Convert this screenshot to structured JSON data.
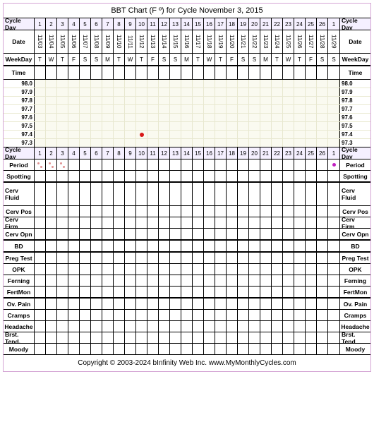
{
  "title": "BBT Chart (F º) for Cycle November 3, 2015",
  "footer": "Copyright © 2003-2024 bInfinity Web Inc.     www.MyMonthlyCycles.com",
  "label_cols": {
    "cycle_day": "Cycle Day",
    "date": "Date",
    "weekday": "WeekDay",
    "time": "Time",
    "period": "Period",
    "spotting": "Spotting",
    "cerv_fluid": "Cerv Fluid",
    "cerv_pos": "Cerv Pos",
    "cerv_firm": "Cerv Firm",
    "cerv_opn": "Cerv Opn",
    "bd": "BD",
    "preg_test": "Preg Test",
    "opk": "OPK",
    "ferning": "Ferning",
    "fertmon": "FertMon",
    "ov_pain": "Ov. Pain",
    "cramps": "Cramps",
    "headache": "Headache",
    "brst_tend_l": "Brst. Tend.",
    "brst_tend_r": "Brst. Tend",
    "moody": "Moody"
  },
  "cycle_days": [
    "1",
    "2",
    "3",
    "4",
    "5",
    "6",
    "7",
    "8",
    "9",
    "10",
    "11",
    "12",
    "13",
    "14",
    "15",
    "16",
    "17",
    "18",
    "19",
    "20",
    "21",
    "22",
    "23",
    "24",
    "25",
    "26",
    "1"
  ],
  "dates": [
    "11/03",
    "11/04",
    "11/05",
    "11/06",
    "11/07",
    "11/08",
    "11/09",
    "11/10",
    "11/11",
    "11/12",
    "11/13",
    "11/14",
    "11/15",
    "11/16",
    "11/17",
    "11/18",
    "11/19",
    "11/20",
    "11/21",
    "11/22",
    "11/23",
    "11/24",
    "11/25",
    "11/26",
    "11/27",
    "11/28",
    "11/29"
  ],
  "weekdays": [
    "T",
    "W",
    "T",
    "F",
    "S",
    "S",
    "M",
    "T",
    "W",
    "T",
    "F",
    "S",
    "S",
    "M",
    "T",
    "W",
    "T",
    "F",
    "S",
    "S",
    "M",
    "T",
    "W",
    "T",
    "F",
    "S",
    "S"
  ],
  "temp_labels": [
    "98.0",
    "97.9",
    "97.8",
    "97.7",
    "97.6",
    "97.5",
    "97.4",
    "97.3"
  ],
  "temp_point": {
    "col": 9,
    "row_label": "97.4",
    "color": "#d81818"
  },
  "period_marks": {
    "cols": [
      0,
      1,
      2
    ],
    "style": "light",
    "color": "#e09090"
  },
  "period_end": {
    "col": 26,
    "color": "#c020c0"
  },
  "colors": {
    "border": "#000000",
    "outer_border": "#d4a5d4",
    "header_bg": "#f5f0ff",
    "temp_bg": "#fafaf0",
    "temp_grid": "#e8e8d0"
  },
  "track_rows": [
    "period",
    "spotting",
    "cerv_fluid",
    "cerv_pos",
    "cerv_firm",
    "cerv_opn",
    "bd",
    "preg_test",
    "opk",
    "ferning",
    "fertmon",
    "ov_pain",
    "cramps",
    "headache",
    "brst_tend",
    "moody"
  ]
}
